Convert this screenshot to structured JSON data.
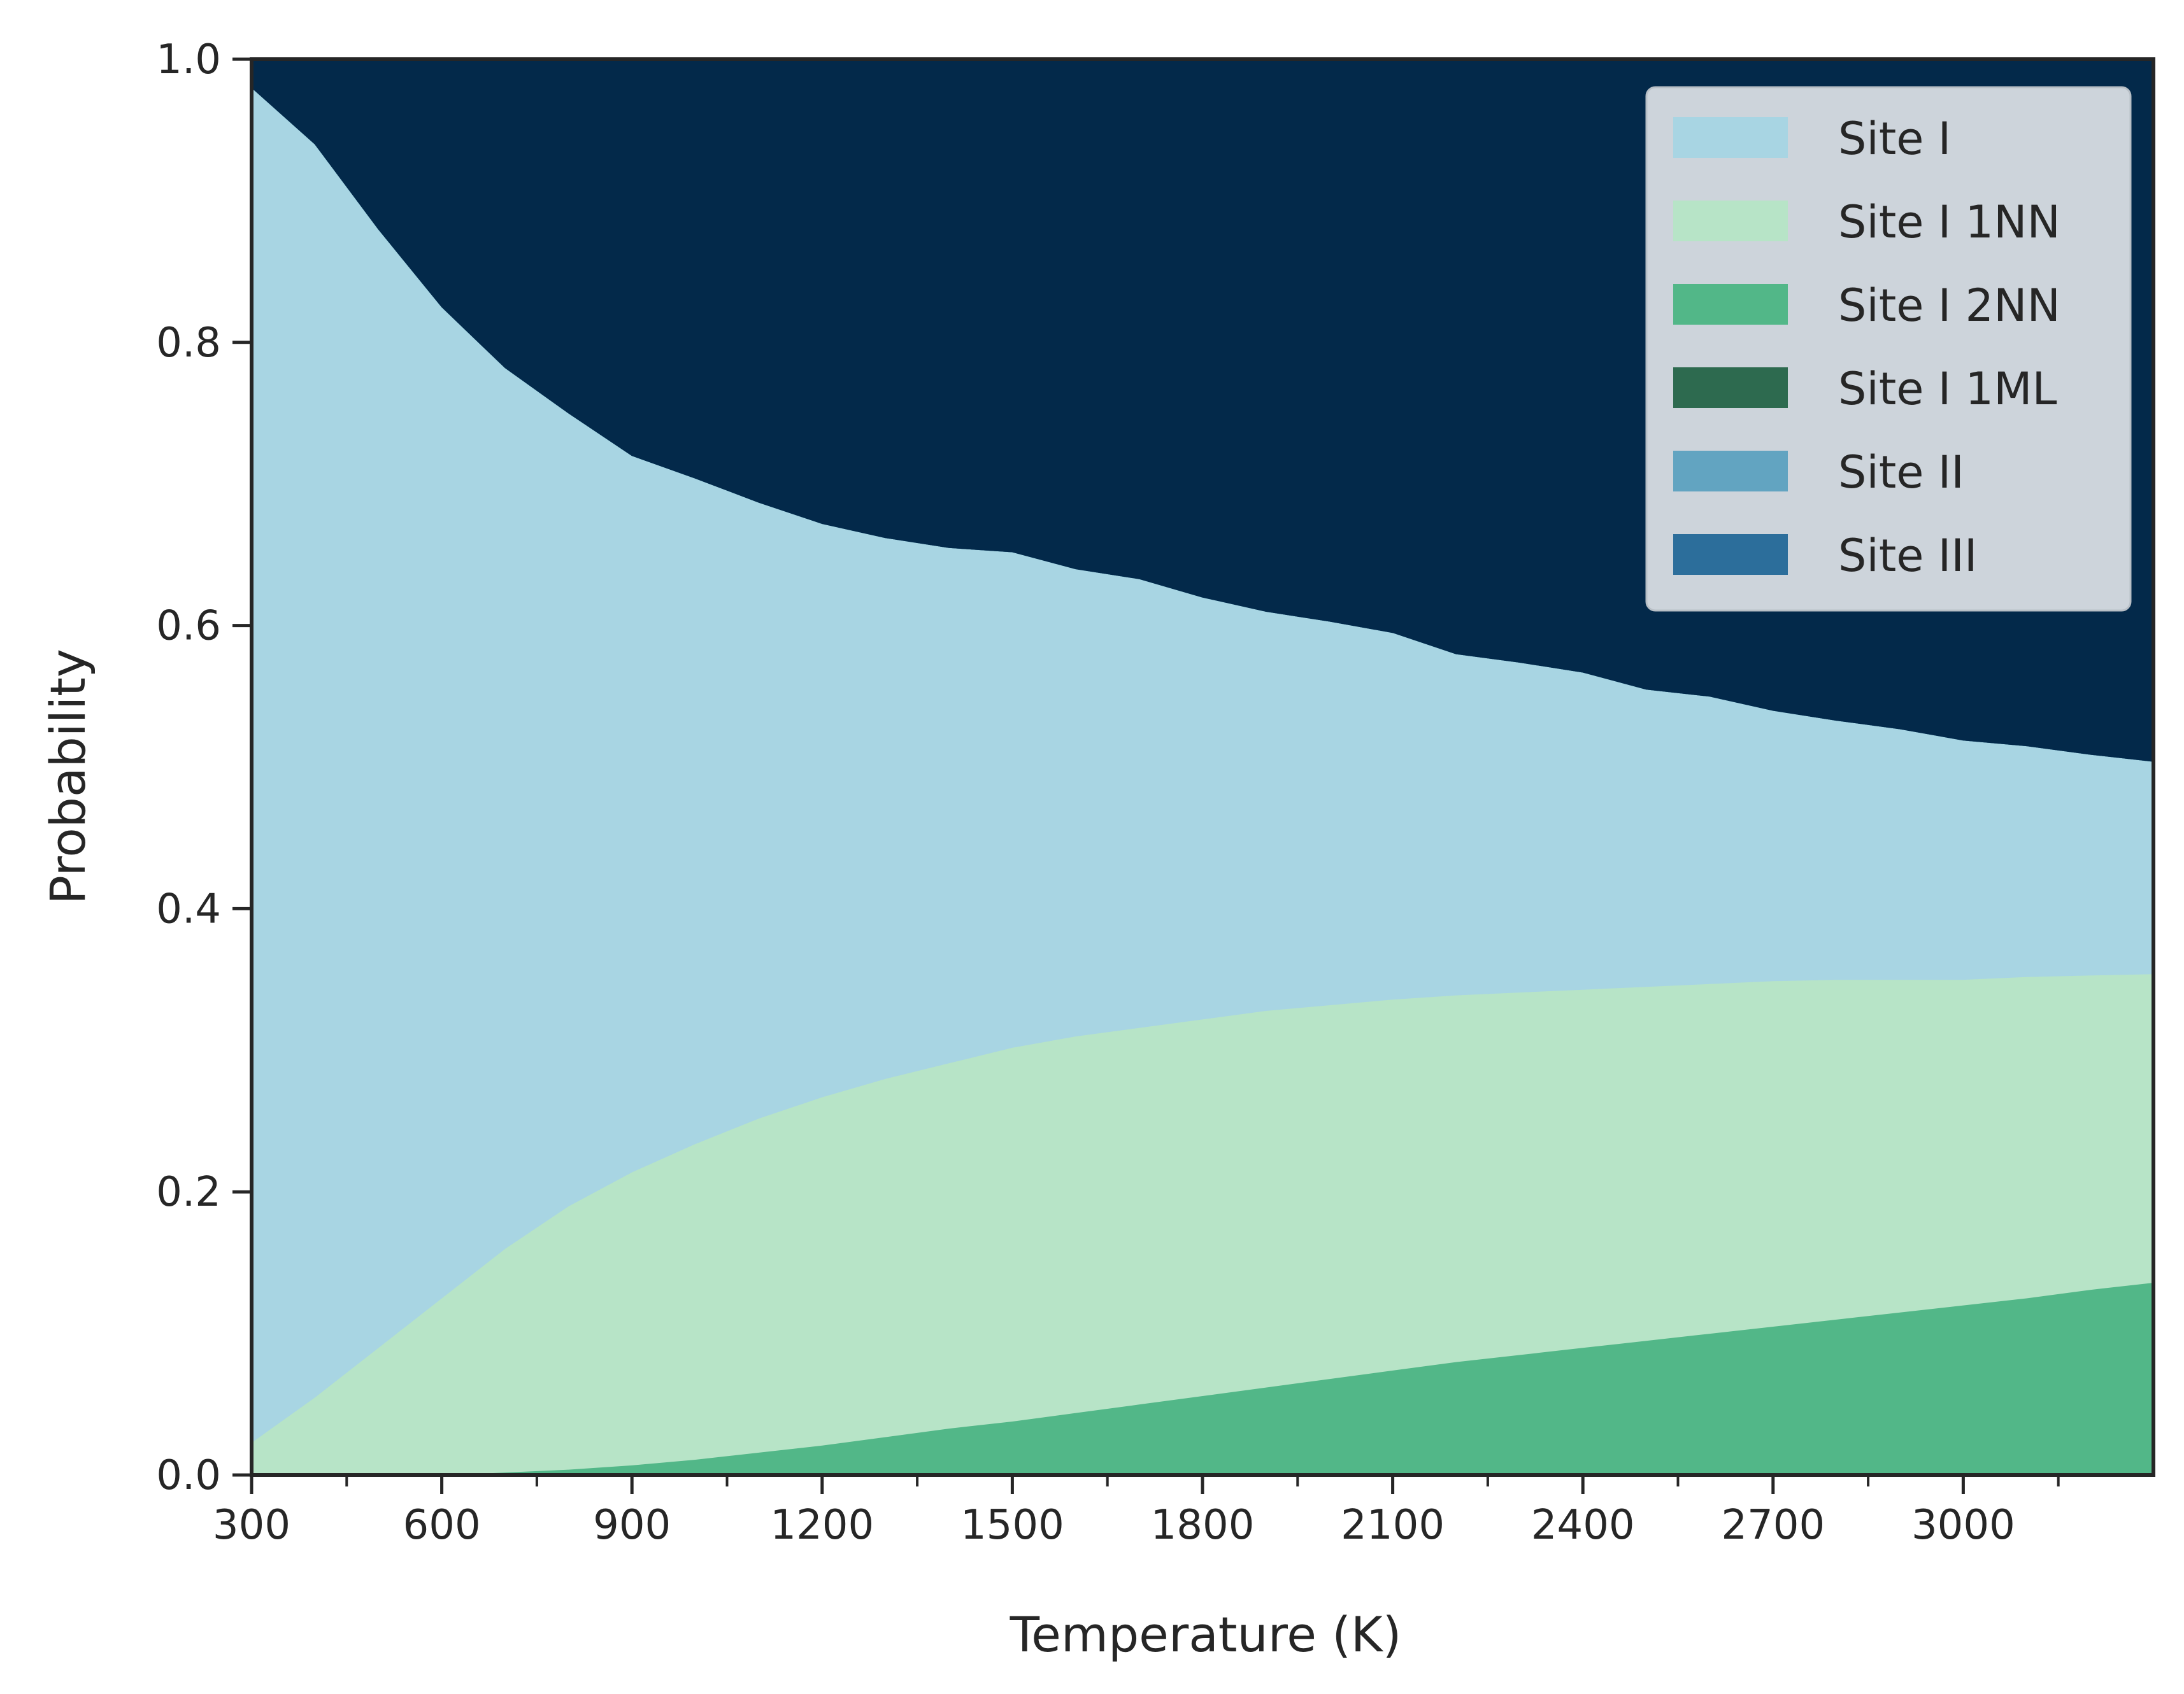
{
  "chart_data": {
    "type": "area",
    "stacked": true,
    "title": "",
    "xlabel": "Temperature (K)",
    "ylabel": "Probability",
    "xlim": [
      300,
      3300
    ],
    "ylim": [
      0,
      1.0
    ],
    "xticks": [
      300,
      600,
      900,
      1200,
      1500,
      1800,
      2100,
      2400,
      2700,
      3000
    ],
    "xticklabels": [
      "300",
      "600",
      "900",
      "1200",
      "1500",
      "1800",
      "2100",
      "2400",
      "2700",
      "3000"
    ],
    "x_minor_ticks": [
      450,
      750,
      1050,
      1350,
      1650,
      1950,
      2250,
      2550,
      2850,
      3150
    ],
    "yticks": [
      0.0,
      0.2,
      0.4,
      0.6,
      0.8,
      1.0
    ],
    "yticklabels": [
      "0.0",
      "0.2",
      "0.4",
      "0.6",
      "0.8",
      "1.0"
    ],
    "grid": false,
    "legend_position": "top-right",
    "x": [
      300,
      400,
      500,
      600,
      700,
      800,
      900,
      1000,
      1100,
      1200,
      1300,
      1400,
      1500,
      1600,
      1700,
      1800,
      1900,
      2000,
      2100,
      2200,
      2300,
      2400,
      2500,
      2600,
      2700,
      2800,
      2900,
      3000,
      3100,
      3200,
      3300
    ],
    "series": [
      {
        "name": "Site I 2NN",
        "color": "#52b788",
        "values": [
          0.0,
          0.0,
          0.0,
          0.0,
          0.002,
          0.004,
          0.007,
          0.011,
          0.016,
          0.021,
          0.027,
          0.033,
          0.038,
          0.044,
          0.05,
          0.056,
          0.062,
          0.068,
          0.074,
          0.08,
          0.085,
          0.09,
          0.095,
          0.1,
          0.105,
          0.11,
          0.115,
          0.12,
          0.125,
          0.131,
          0.136
        ]
      },
      {
        "name": "Site I 1NN",
        "color": "#b7e4c7",
        "values": [
          0.023,
          0.055,
          0.09,
          0.125,
          0.158,
          0.186,
          0.207,
          0.223,
          0.236,
          0.246,
          0.253,
          0.258,
          0.264,
          0.266,
          0.266,
          0.266,
          0.266,
          0.264,
          0.262,
          0.259,
          0.256,
          0.253,
          0.25,
          0.247,
          0.244,
          0.24,
          0.235,
          0.23,
          0.227,
          0.222,
          0.218
        ]
      },
      {
        "name": "Site I",
        "color": "#a8d5e3",
        "values": [
          0.957,
          0.885,
          0.79,
          0.7,
          0.622,
          0.56,
          0.506,
          0.47,
          0.435,
          0.405,
          0.382,
          0.364,
          0.35,
          0.33,
          0.317,
          0.298,
          0.282,
          0.271,
          0.259,
          0.241,
          0.233,
          0.224,
          0.21,
          0.203,
          0.191,
          0.183,
          0.177,
          0.169,
          0.163,
          0.156,
          0.15
        ]
      },
      {
        "name": "Site I 1ML",
        "color": "#2d6a4f",
        "values": [
          0,
          0,
          0,
          0,
          0,
          0,
          0,
          0,
          0,
          0,
          0,
          0,
          0,
          0,
          0,
          0,
          0,
          0,
          0,
          0,
          0,
          0,
          0,
          0,
          0,
          0,
          0,
          0,
          0,
          0,
          0
        ]
      },
      {
        "name": "Site II",
        "color": "#62a4c1",
        "values": [
          0,
          0,
          0,
          0,
          0,
          0,
          0,
          0,
          0,
          0,
          0,
          0,
          0,
          0,
          0,
          0,
          0,
          0,
          0,
          0,
          0,
          0,
          0,
          0,
          0,
          0,
          0,
          0,
          0,
          0,
          0
        ]
      },
      {
        "name": "Site III",
        "color": "#2c6e9b",
        "values": [
          0,
          0,
          0,
          0,
          0,
          0,
          0,
          0,
          0,
          0,
          0,
          0,
          0,
          0,
          0,
          0,
          0,
          0,
          0,
          0,
          0,
          0,
          0,
          0,
          0,
          0,
          0,
          0,
          0,
          0,
          0
        ]
      },
      {
        "name": "",
        "color": "#03294a",
        "values": [
          0.02,
          0.06,
          0.12,
          0.175,
          0.218,
          0.25,
          0.28,
          0.296,
          0.313,
          0.328,
          0.338,
          0.345,
          0.348,
          0.36,
          0.367,
          0.38,
          0.39,
          0.397,
          0.405,
          0.42,
          0.426,
          0.433,
          0.445,
          0.45,
          0.46,
          0.467,
          0.473,
          0.481,
          0.485,
          0.491,
          0.496
        ]
      }
    ],
    "legend": [
      {
        "label": "Site I",
        "color": "#a8d5e3"
      },
      {
        "label": "Site I 1NN",
        "color": "#b7e4c7"
      },
      {
        "label": "Site I 2NN",
        "color": "#52b788"
      },
      {
        "label": "Site I 1ML",
        "color": "#2d6a4f"
      },
      {
        "label": "Site II",
        "color": "#62a4c1"
      },
      {
        "label": "Site III",
        "color": "#2c6e9b"
      }
    ],
    "colors": {
      "axis": "#262626",
      "legend_bg": "#cdd4db",
      "legend_border": "#b8bfc6"
    }
  }
}
